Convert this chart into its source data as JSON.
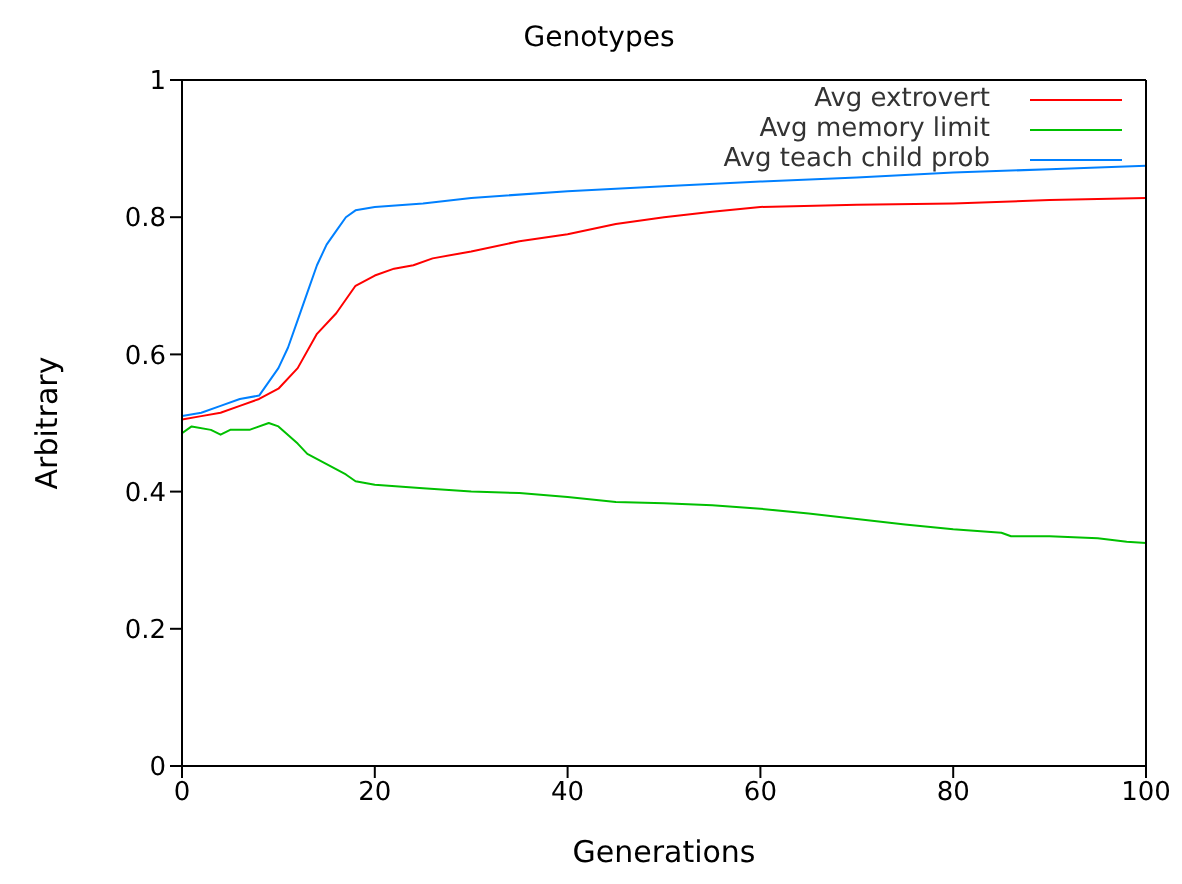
{
  "chart_data": {
    "type": "line",
    "title": "Genotypes",
    "xlabel": "Generations",
    "ylabel": "Arbitrary",
    "xlim": [
      0,
      100
    ],
    "xticks": [
      0,
      20,
      40,
      60,
      80,
      100
    ],
    "ylim": [
      0,
      1
    ],
    "yticks": [
      0,
      0.2,
      0.4,
      0.6,
      0.8,
      1
    ],
    "legend": "top right",
    "marker": "none",
    "line_style": "solid",
    "series": [
      {
        "name": "Avg extrovert",
        "color": "#ff0000",
        "x": [
          0,
          2,
          4,
          6,
          8,
          10,
          12,
          14,
          16,
          18,
          20,
          22,
          24,
          26,
          30,
          35,
          40,
          45,
          50,
          55,
          60,
          70,
          80,
          90,
          100
        ],
        "values": [
          0.505,
          0.51,
          0.515,
          0.525,
          0.535,
          0.55,
          0.58,
          0.63,
          0.66,
          0.7,
          0.715,
          0.725,
          0.73,
          0.74,
          0.75,
          0.765,
          0.775,
          0.79,
          0.8,
          0.808,
          0.815,
          0.818,
          0.82,
          0.825,
          0.828
        ]
      },
      {
        "name": "Avg memory limit",
        "color": "#00c000",
        "x": [
          0,
          1,
          3,
          4,
          5,
          7,
          9,
          10,
          12,
          13,
          15,
          17,
          18,
          20,
          25,
          30,
          35,
          40,
          45,
          50,
          55,
          60,
          65,
          70,
          75,
          80,
          85,
          86,
          90,
          95,
          98,
          100
        ],
        "values": [
          0.485,
          0.495,
          0.49,
          0.483,
          0.49,
          0.49,
          0.5,
          0.495,
          0.47,
          0.455,
          0.44,
          0.425,
          0.415,
          0.41,
          0.405,
          0.4,
          0.398,
          0.392,
          0.385,
          0.383,
          0.38,
          0.375,
          0.368,
          0.36,
          0.352,
          0.345,
          0.34,
          0.335,
          0.335,
          0.332,
          0.327,
          0.325
        ]
      },
      {
        "name": "Avg teach child prob",
        "color": "#0080ff",
        "x": [
          0,
          2,
          4,
          6,
          8,
          9,
          10,
          11,
          12,
          13,
          14,
          15,
          16,
          17,
          18,
          20,
          25,
          30,
          40,
          50,
          60,
          70,
          80,
          90,
          100
        ],
        "values": [
          0.51,
          0.515,
          0.525,
          0.535,
          0.54,
          0.56,
          0.58,
          0.61,
          0.65,
          0.69,
          0.73,
          0.76,
          0.78,
          0.8,
          0.81,
          0.815,
          0.82,
          0.828,
          0.838,
          0.845,
          0.852,
          0.858,
          0.865,
          0.87,
          0.875
        ]
      }
    ]
  }
}
